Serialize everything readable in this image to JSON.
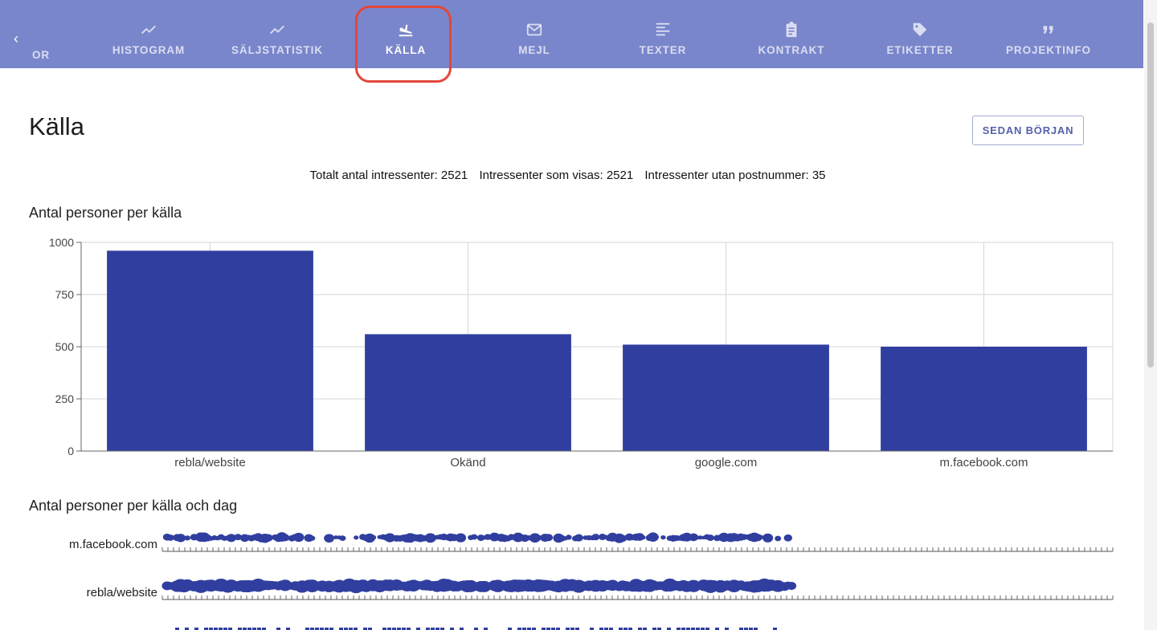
{
  "tabs": {
    "partial": {
      "label": "OR",
      "icon": "partial-tab"
    },
    "items": [
      {
        "label": "HISTOGRAM",
        "icon": "trending-up-icon",
        "active": false
      },
      {
        "label": "SÄLJSTATISTIK",
        "icon": "trending-up-icon",
        "active": false
      },
      {
        "label": "KÄLLA",
        "icon": "flight-land-icon",
        "active": true
      },
      {
        "label": "MEJL",
        "icon": "mail-icon",
        "active": false
      },
      {
        "label": "TEXTER",
        "icon": "text-lines-icon",
        "active": false
      },
      {
        "label": "KONTRAKT",
        "icon": "clipboard-icon",
        "active": false
      },
      {
        "label": "ETIKETTER",
        "icon": "tag-icon",
        "active": false
      },
      {
        "label": "PROJEKTINFO",
        "icon": "quote-icon",
        "active": false
      }
    ],
    "scroll_left": "‹"
  },
  "page": {
    "title": "Källa",
    "since_button": "SEDAN BÖRJAN"
  },
  "stats": {
    "total": "Totalt antal intressenter: 2521",
    "shown": "Intressenter som visas: 2521",
    "no_zip": "Intressenter utan postnummer: 35"
  },
  "section1": {
    "title": "Antal personer per källa"
  },
  "section2": {
    "title": "Antal personer per källa och dag"
  },
  "colors": {
    "tabbar": "#7986cb",
    "bar": "#303f9f",
    "highlight": "#e5463a"
  },
  "chart_data": [
    {
      "type": "bar",
      "title": "Antal personer per källa",
      "categories": [
        "rebla/website",
        "Okänd",
        "google.com",
        "m.facebook.com"
      ],
      "values": [
        960,
        560,
        510,
        500
      ],
      "ylim": [
        0,
        1000
      ],
      "yticks": [
        0,
        250,
        500,
        750,
        1000
      ],
      "grid": true,
      "xlabel": "",
      "ylabel": ""
    },
    {
      "type": "scatter",
      "title": "Antal personer per källa och dag",
      "rows": [
        "m.facebook.com",
        "rebla/website"
      ]
    }
  ]
}
